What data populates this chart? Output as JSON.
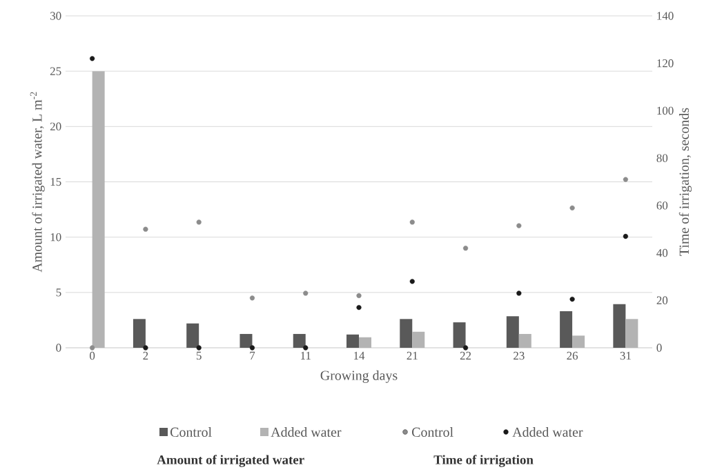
{
  "chart_data": {
    "type": "bar",
    "xlabel": "Growing days",
    "ylabel": "Amount of irrigated water, L m$^{-2}$",
    "y2label": "Time of irrigation, seconds",
    "categories": [
      "0",
      "2",
      "5",
      "7",
      "11",
      "14",
      "21",
      "22",
      "23",
      "26",
      "31"
    ],
    "series": [
      {
        "name": "Control",
        "color": "#595959",
        "values": [
          0,
          2.6,
          2.2,
          1.25,
          1.25,
          1.2,
          2.6,
          2.3,
          2.85,
          3.3,
          3.95
        ]
      },
      {
        "name": "Added water",
        "color": "#b3b3b3",
        "values": [
          25,
          0,
          0,
          0,
          0,
          0.95,
          1.45,
          0,
          1.25,
          1.1,
          2.6
        ]
      },
      {
        "name": "Control",
        "type": "scatter",
        "axis": "y2",
        "marker": "circle",
        "color": "#8c8c8c",
        "values": [
          0,
          50,
          53,
          21,
          23,
          22,
          53,
          42,
          51.5,
          59,
          71
        ]
      },
      {
        "name": "Added water",
        "type": "scatter",
        "axis": "y2",
        "marker": "circle",
        "color": "#1a1a1a",
        "values": [
          122,
          0,
          0,
          0,
          0,
          17,
          28,
          0,
          23,
          20.5,
          47
        ]
      }
    ],
    "ylim": [
      0,
      30
    ],
    "yticks": [
      0,
      5,
      10,
      15,
      20,
      25,
      30
    ],
    "y2lim": [
      0,
      140
    ],
    "y2ticks": [
      0,
      20,
      40,
      60,
      80,
      100,
      120,
      140
    ],
    "grid": "y",
    "legend": "bottom",
    "annotations": [
      "Amount of irrigated water",
      "Time of irrigation"
    ]
  }
}
